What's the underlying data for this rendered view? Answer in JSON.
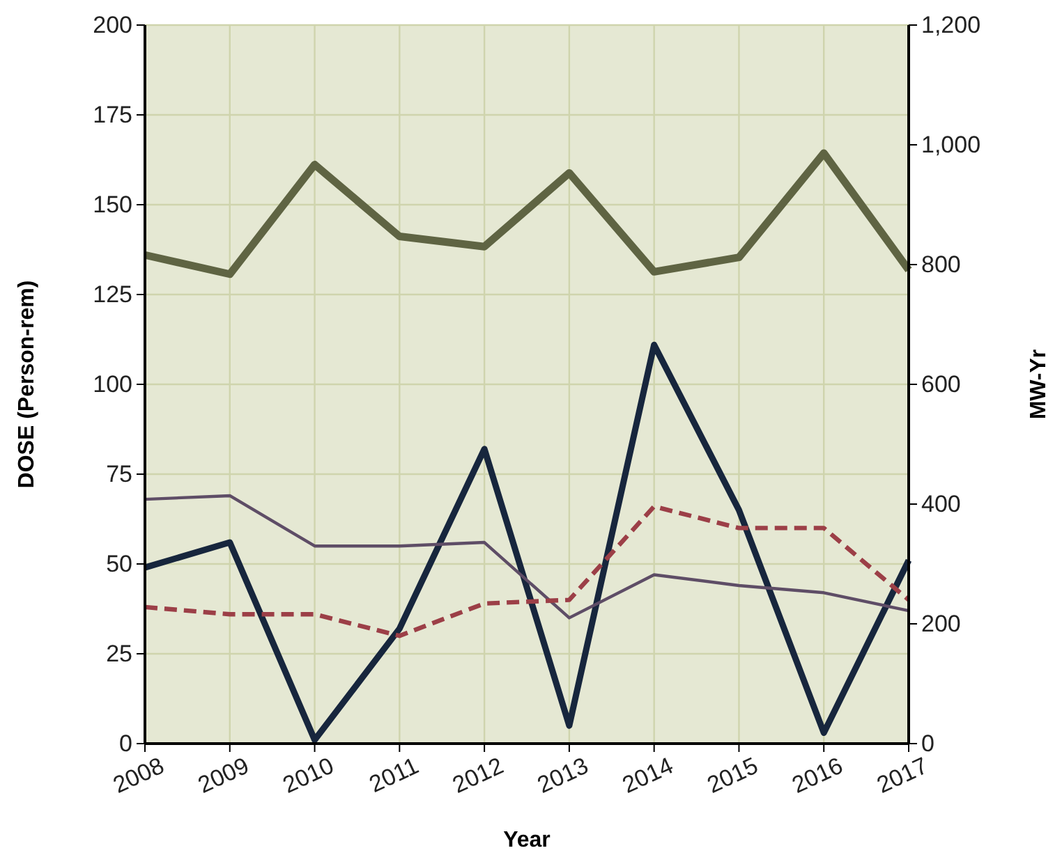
{
  "chart_data": {
    "type": "line",
    "xlabel": "Year",
    "ylabel": "DOSE (Person-rem)",
    "y2label": "MW-Yr",
    "categories": [
      "2008",
      "2009",
      "2010",
      "2011",
      "2012",
      "2013",
      "2014",
      "2015",
      "2016",
      "2017"
    ],
    "series": [
      {
        "color": "#5f6443",
        "axis": "y2",
        "line_style": "solid",
        "values": [
          816,
          784,
          967,
          847,
          830,
          953,
          788,
          812,
          986,
          791
        ]
      },
      {
        "color": "#17263d",
        "line_style": "solid",
        "values": [
          49,
          56,
          1,
          32,
          82,
          5,
          111,
          65,
          3,
          51
        ]
      },
      {
        "color": "#5e4d66",
        "line_style": "solid",
        "values": [
          68,
          69,
          55,
          55,
          56,
          35,
          47,
          44,
          42,
          37
        ]
      },
      {
        "color": "#9c3f47",
        "line_style": "dashed",
        "values": [
          38,
          36,
          36,
          30,
          39,
          40,
          66,
          60,
          60,
          40
        ]
      }
    ],
    "ylim": [
      0,
      200
    ],
    "yticks": [
      0,
      25,
      50,
      75,
      100,
      125,
      150,
      175,
      200
    ],
    "y2lim": [
      0,
      1200
    ],
    "y2ticks": [
      0,
      200,
      400,
      600,
      800,
      {
        "value": 1000,
        "label": "1,000"
      },
      {
        "value": 1200,
        "label": "1,200"
      }
    ],
    "grid": true,
    "marker": "none"
  }
}
